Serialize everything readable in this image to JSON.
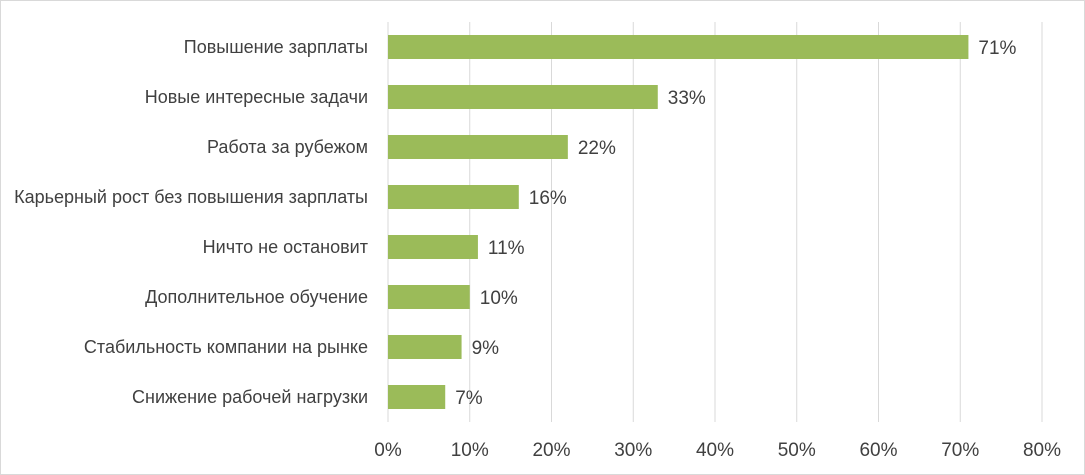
{
  "chart_data": {
    "type": "bar",
    "orientation": "horizontal",
    "categories": [
      "Повышение зарплаты",
      "Новые интересные задачи",
      "Работа за рубежом",
      "Карьерный рост без повышения зарплаты",
      "Ничто не остановит",
      "Дополнительное обучение",
      "Стабильность компании на рынке",
      "Снижение рабочей нагрузки"
    ],
    "values": [
      71,
      33,
      22,
      16,
      11,
      10,
      9,
      7
    ],
    "value_labels": [
      "71%",
      "33%",
      "22%",
      "16%",
      "11%",
      "10%",
      "9%",
      "7%"
    ],
    "x_ticks": [
      "0%",
      "10%",
      "20%",
      "30%",
      "40%",
      "50%",
      "60%",
      "70%",
      "80%"
    ],
    "xlim": [
      0,
      80
    ],
    "grid": "vertical",
    "legend": "none",
    "bar_color": "#9bbb59"
  }
}
